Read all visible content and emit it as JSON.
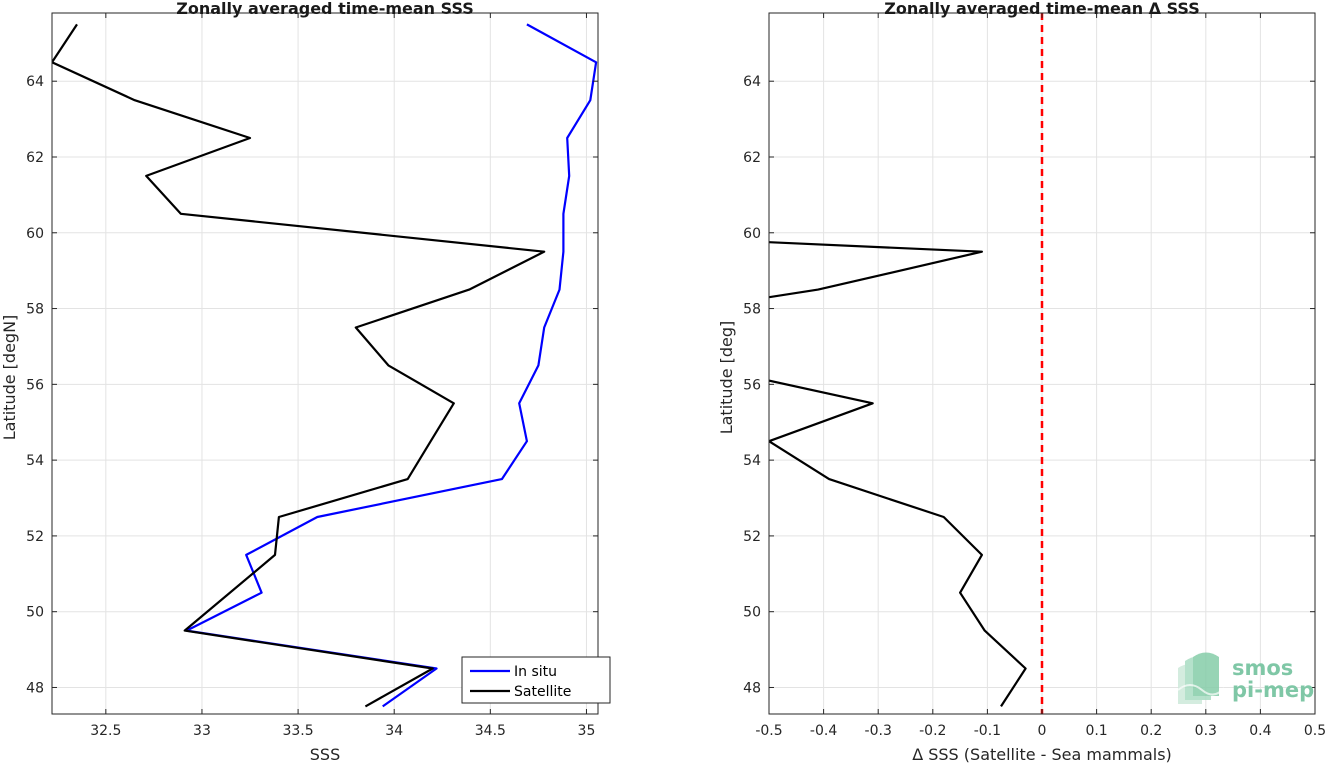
{
  "chart_data": [
    {
      "type": "line",
      "title": "Zonally averaged time-mean SSS",
      "xlabel": "SSS",
      "ylabel": "Latitude [degN]",
      "xlim": [
        32.22,
        35.06
      ],
      "ylim": [
        47.3,
        65.8
      ],
      "xticks": [
        32.5,
        33,
        33.5,
        34,
        34.5,
        35
      ],
      "xtick_labels": [
        "32.5",
        "33",
        "33.5",
        "34",
        "34.5",
        "35"
      ],
      "yticks": [
        48,
        50,
        52,
        54,
        56,
        58,
        60,
        62,
        64
      ],
      "ytick_labels": [
        "48",
        "50",
        "52",
        "54",
        "56",
        "58",
        "60",
        "62",
        "64"
      ],
      "grid": true,
      "legend_position": "bottom-right",
      "series": [
        {
          "name": "In situ",
          "color": "#0000ff",
          "points": [
            [
              33.94,
              47.5
            ],
            [
              34.22,
              48.5
            ],
            [
              32.92,
              49.5
            ],
            [
              33.31,
              50.5
            ],
            [
              33.23,
              51.5
            ],
            [
              33.6,
              52.5
            ],
            [
              34.56,
              53.5
            ],
            [
              34.69,
              54.5
            ],
            [
              34.65,
              55.5
            ],
            [
              34.75,
              56.5
            ],
            [
              34.78,
              57.5
            ],
            [
              34.86,
              58.5
            ],
            [
              34.88,
              59.5
            ],
            [
              34.88,
              60.5
            ],
            [
              34.91,
              61.5
            ],
            [
              34.9,
              62.5
            ],
            [
              35.02,
              63.5
            ],
            [
              35.05,
              64.5
            ],
            [
              34.69,
              65.5
            ]
          ]
        },
        {
          "name": "Satellite",
          "color": "#000000",
          "points": [
            [
              33.85,
              47.5
            ],
            [
              34.2,
              48.5
            ],
            [
              32.91,
              49.5
            ],
            [
              33.38,
              51.5
            ],
            [
              33.4,
              52.5
            ],
            [
              34.07,
              53.5
            ],
            [
              34.19,
              54.5
            ],
            [
              34.31,
              55.5
            ],
            [
              33.97,
              56.5
            ],
            [
              33.8,
              57.5
            ],
            [
              34.39,
              58.5
            ],
            [
              34.78,
              59.5
            ],
            [
              32.89,
              60.5
            ],
            [
              32.71,
              61.5
            ],
            [
              33.25,
              62.5
            ],
            [
              32.65,
              63.5
            ],
            [
              32.22,
              64.5
            ],
            [
              32.35,
              65.5
            ]
          ]
        }
      ]
    },
    {
      "type": "line",
      "title": "Zonally averaged time-mean Δ SSS",
      "xlabel": "Δ SSS (Satellite - Sea mammals)",
      "ylabel": "Latitude [deg]",
      "xlim": [
        -0.5,
        0.5
      ],
      "ylim": [
        47.3,
        65.8
      ],
      "xticks": [
        -0.5,
        -0.4,
        -0.3,
        -0.2,
        -0.1,
        0,
        0.1,
        0.2,
        0.3,
        0.4,
        0.5
      ],
      "xtick_labels": [
        "-0.5",
        "-0.4",
        "-0.3",
        "-0.2",
        "-0.1",
        "0",
        "0.1",
        "0.2",
        "0.3",
        "0.4",
        "0.5"
      ],
      "yticks": [
        48,
        50,
        52,
        54,
        56,
        58,
        60,
        62,
        64
      ],
      "ytick_labels": [
        "48",
        "50",
        "52",
        "54",
        "56",
        "58",
        "60",
        "62",
        "64"
      ],
      "grid": true,
      "reference_line": {
        "x": 0,
        "color": "#ff0000",
        "style": "dashed"
      },
      "series": [
        {
          "color": "#000000",
          "segments": [
            [
              [
                -0.5,
                59.75
              ],
              [
                -0.11,
                59.5
              ],
              [
                -0.41,
                58.5
              ],
              [
                -0.5,
                58.3
              ]
            ],
            [
              [
                -0.5,
                56.1
              ],
              [
                -0.31,
                55.5
              ],
              [
                -0.5,
                54.5
              ],
              [
                -0.39,
                53.5
              ],
              [
                -0.18,
                52.5
              ],
              [
                -0.11,
                51.5
              ],
              [
                -0.15,
                50.5
              ],
              [
                -0.105,
                49.5
              ],
              [
                -0.03,
                48.5
              ],
              [
                -0.075,
                47.5
              ]
            ]
          ]
        }
      ]
    }
  ],
  "logo": {
    "line1": "smos",
    "line2": "pi-mep",
    "color": "#7fc7a6"
  }
}
